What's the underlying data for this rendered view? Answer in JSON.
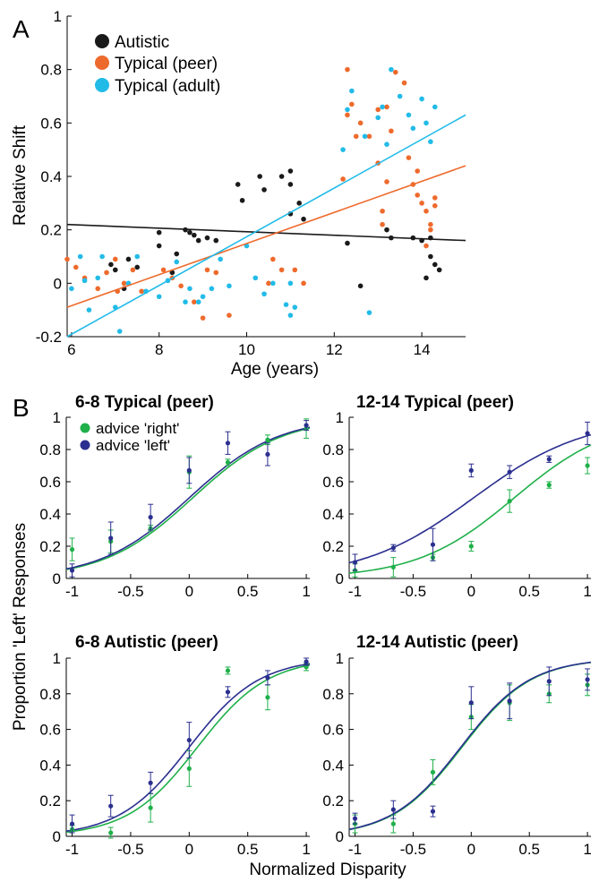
{
  "colors": {
    "autistic": "#1a1a1a",
    "typical_peer": "#ee6a2c",
    "typical_adult": "#22bbe8",
    "advice_right": "#1fb04a",
    "advice_left": "#2b2f8f"
  },
  "panel_a": {
    "letter": "A",
    "xlabel": "Age (years)",
    "ylabel": "Relative Shift",
    "legend": [
      "Autistic",
      "Typical (peer)",
      "Typical (adult)"
    ]
  },
  "panel_b": {
    "letter": "B",
    "xlabel": "Normalized Disparity",
    "ylabel": "Proportion 'Left' Responses",
    "legend": [
      "advice 'right'",
      "advice 'left'"
    ],
    "titles": [
      "6-8 Typical (peer)",
      "12-14 Typical (peer)",
      "6-8 Autistic (peer)",
      "12-14 Autistic (peer)"
    ]
  },
  "chart_data": [
    {
      "type": "scatter",
      "panel": "A",
      "xlabel": "Age (years)",
      "ylabel": "Relative Shift",
      "xlim": [
        5.9,
        15
      ],
      "ylim": [
        -0.2,
        1
      ],
      "xticks": [
        "6",
        "8",
        "10",
        "12",
        "14"
      ],
      "yticks": [
        "-0.2",
        "0",
        "0.2",
        "0.4",
        "0.6",
        "0.8",
        "1"
      ],
      "series": [
        {
          "name": "Autistic",
          "points": [
            [
              6.9,
              0.07
            ],
            [
              7.0,
              0.05
            ],
            [
              7.3,
              0.09
            ],
            [
              7.5,
              0.06
            ],
            [
              7.2,
              -0.02
            ],
            [
              8.0,
              0.19
            ],
            [
              8.0,
              0.14
            ],
            [
              8.3,
              0.04
            ],
            [
              8.4,
              0.11
            ],
            [
              8.6,
              0.2
            ],
            [
              8.7,
              0.19
            ],
            [
              8.8,
              0.18
            ],
            [
              8.9,
              0.16
            ],
            [
              9.1,
              0.17
            ],
            [
              9.3,
              0.16
            ],
            [
              9.8,
              0.37
            ],
            [
              9.9,
              0.31
            ],
            [
              10.3,
              0.4
            ],
            [
              10.4,
              0.35
            ],
            [
              10.8,
              0.4
            ],
            [
              11.0,
              0.42
            ],
            [
              11.0,
              0.37
            ],
            [
              11.2,
              0.3
            ],
            [
              11.0,
              0.26
            ],
            [
              11.3,
              0.24
            ],
            [
              12.3,
              0.15
            ],
            [
              12.6,
              -0.01
            ],
            [
              13.2,
              0.2
            ],
            [
              13.3,
              0.17
            ],
            [
              13.8,
              0.17
            ],
            [
              14.0,
              0.16
            ],
            [
              14.2,
              0.17
            ],
            [
              14.2,
              0.1
            ],
            [
              14.3,
              0.07
            ],
            [
              14.4,
              0.05
            ],
            [
              14.1,
              0.02
            ]
          ]
        },
        {
          "name": "Typical (peer)",
          "points": [
            [
              5.9,
              0.09
            ],
            [
              6.1,
              0.06
            ],
            [
              6.3,
              0.02
            ],
            [
              6.6,
              -0.02
            ],
            [
              6.8,
              0.04
            ],
            [
              7.0,
              0.09
            ],
            [
              7.05,
              -0.03
            ],
            [
              7.2,
              0.0
            ],
            [
              7.4,
              0.05
            ],
            [
              7.6,
              -0.03
            ],
            [
              8.1,
              0.05
            ],
            [
              8.3,
              0.02
            ],
            [
              8.5,
              -0.01
            ],
            [
              8.8,
              -0.07
            ],
            [
              9.0,
              -0.13
            ],
            [
              9.1,
              0.05
            ],
            [
              9.3,
              0.04
            ],
            [
              9.6,
              -0.12
            ],
            [
              10.5,
              0.0
            ],
            [
              10.6,
              0.09
            ],
            [
              10.8,
              0.05
            ],
            [
              11.1,
              0.05
            ],
            [
              11.3,
              0.0
            ],
            [
              12.2,
              0.39
            ],
            [
              12.3,
              0.63
            ],
            [
              12.3,
              0.8
            ],
            [
              12.4,
              0.67
            ],
            [
              12.5,
              0.55
            ],
            [
              12.6,
              0.6
            ],
            [
              12.8,
              0.55
            ],
            [
              13.0,
              0.65
            ],
            [
              13.0,
              0.45
            ],
            [
              13.1,
              0.27
            ],
            [
              13.1,
              0.22
            ],
            [
              13.2,
              0.38
            ],
            [
              13.2,
              0.66
            ],
            [
              13.3,
              0.57
            ],
            [
              13.4,
              0.79
            ],
            [
              13.6,
              0.75
            ],
            [
              13.8,
              0.37
            ],
            [
              13.9,
              0.33
            ],
            [
              14.0,
              0.3
            ],
            [
              14.1,
              0.27
            ],
            [
              14.2,
              0.22
            ],
            [
              14.2,
              0.2
            ],
            [
              14.3,
              0.29
            ],
            [
              14.3,
              0.32
            ],
            [
              14.1,
              0.14
            ],
            [
              13.7,
              0.47
            ],
            [
              13.9,
              0.42
            ]
          ]
        },
        {
          "name": "Typical (adult)",
          "points": [
            [
              6.0,
              -0.02
            ],
            [
              6.2,
              0.1
            ],
            [
              6.3,
              0.01
            ],
            [
              6.4,
              -0.1
            ],
            [
              6.6,
              0.02
            ],
            [
              6.7,
              0.1
            ],
            [
              7.0,
              -0.09
            ],
            [
              7.1,
              -0.18
            ],
            [
              7.3,
              0.0
            ],
            [
              7.5,
              0.1
            ],
            [
              7.7,
              -0.03
            ],
            [
              8.0,
              -0.05
            ],
            [
              8.2,
              0.01
            ],
            [
              8.4,
              0.08
            ],
            [
              8.6,
              -0.07
            ],
            [
              8.7,
              -0.02
            ],
            [
              8.9,
              -0.07
            ],
            [
              9.0,
              -0.05
            ],
            [
              9.2,
              -0.02
            ],
            [
              9.4,
              0.09
            ],
            [
              9.6,
              -0.01
            ],
            [
              10.0,
              0.14
            ],
            [
              10.2,
              0.02
            ],
            [
              10.4,
              -0.04
            ],
            [
              10.6,
              0.0
            ],
            [
              10.9,
              -0.08
            ],
            [
              11.0,
              -0.12
            ],
            [
              11.1,
              -0.09
            ],
            [
              11.0,
              0.0
            ],
            [
              12.2,
              0.5
            ],
            [
              12.3,
              0.65
            ],
            [
              12.4,
              0.72
            ],
            [
              12.7,
              0.55
            ],
            [
              13.0,
              0.62
            ],
            [
              13.1,
              0.66
            ],
            [
              13.2,
              0.52
            ],
            [
              13.3,
              0.8
            ],
            [
              13.5,
              0.7
            ],
            [
              13.7,
              0.63
            ],
            [
              13.8,
              0.58
            ],
            [
              14.0,
              0.69
            ],
            [
              14.1,
              0.6
            ],
            [
              14.3,
              0.66
            ],
            [
              14.2,
              0.53
            ],
            [
              12.8,
              -0.11
            ]
          ]
        }
      ],
      "fits": [
        {
          "name": "Autistic",
          "x": [
            5.9,
            15
          ],
          "y": [
            0.22,
            0.16
          ]
        },
        {
          "name": "Typical (peer)",
          "x": [
            5.9,
            15
          ],
          "y": [
            -0.09,
            0.44
          ]
        },
        {
          "name": "Typical (adult)",
          "x": [
            5.9,
            15
          ],
          "y": [
            -0.2,
            0.63
          ]
        }
      ]
    },
    {
      "type": "scatter",
      "panel": "B",
      "title": "6-8 Typical (peer)",
      "xlim": [
        -1.05,
        1.03
      ],
      "ylim": [
        0,
        1
      ],
      "xticks": [
        "-1",
        "-0.5",
        "0",
        "0.5",
        "1"
      ],
      "yticks": [
        "0",
        "0.2",
        "0.4",
        "0.6",
        "0.8",
        "1"
      ],
      "series": [
        {
          "name": "advice 'right'",
          "x": [
            -1,
            -0.67,
            -0.33,
            0,
            0.33,
            0.67,
            1
          ],
          "y": [
            0.18,
            0.23,
            0.31,
            0.66,
            0.72,
            0.86,
            0.93
          ],
          "err": [
            0.07,
            0.07,
            0.02,
            0.1,
            0.02,
            0.03,
            0.06
          ]
        },
        {
          "name": "advice 'left'",
          "x": [
            -1,
            -0.67,
            -0.33,
            0,
            0.33,
            0.67,
            1
          ],
          "y": [
            0.05,
            0.25,
            0.38,
            0.67,
            0.84,
            0.77,
            0.95
          ],
          "err": [
            0.04,
            0.1,
            0.08,
            0.08,
            0.07,
            0.07,
            0.03
          ]
        }
      ],
      "fits": [
        {
          "name": "advice 'right'",
          "mu": 0.03,
          "s": 0.38
        },
        {
          "name": "advice 'left'",
          "mu": 0.0,
          "s": 0.38
        }
      ]
    },
    {
      "type": "scatter",
      "panel": "B",
      "title": "12-14 Typical (peer)",
      "xlim": [
        -1.05,
        1.03
      ],
      "ylim": [
        0,
        1
      ],
      "xticks": [
        "-1",
        "-0.5",
        "0",
        "0.5",
        "1"
      ],
      "yticks": [
        "0",
        "0.2",
        "0.4",
        "0.6",
        "0.8",
        "1"
      ],
      "series": [
        {
          "name": "advice 'right'",
          "x": [
            -1,
            -0.67,
            -0.33,
            0,
            0.33,
            0.67,
            1
          ],
          "y": [
            0.05,
            0.07,
            0.13,
            0.2,
            0.48,
            0.58,
            0.7
          ],
          "err": [
            0.04,
            0.06,
            0.02,
            0.03,
            0.07,
            0.02,
            0.05
          ]
        },
        {
          "name": "advice 'left'",
          "x": [
            -1,
            -0.67,
            -0.33,
            0,
            0.33,
            0.67,
            1
          ],
          "y": [
            0.1,
            0.19,
            0.21,
            0.67,
            0.66,
            0.74,
            0.9
          ],
          "err": [
            0.05,
            0.02,
            0.1,
            0.04,
            0.04,
            0.02,
            0.07
          ]
        }
      ],
      "fits": [
        {
          "name": "advice 'right'",
          "mu": 0.37,
          "s": 0.42
        },
        {
          "name": "advice 'left'",
          "mu": 0.02,
          "s": 0.48
        }
      ]
    },
    {
      "type": "scatter",
      "panel": "B",
      "title": "6-8 Autistic (peer)",
      "xlim": [
        -1.05,
        1.03
      ],
      "ylim": [
        0,
        1
      ],
      "xticks": [
        "-1",
        "-0.5",
        "0",
        "0.5",
        "1"
      ],
      "yticks": [
        "0",
        "0.2",
        "0.4",
        "0.6",
        "0.8",
        "1"
      ],
      "series": [
        {
          "name": "advice 'right'",
          "x": [
            -1,
            -0.67,
            -0.33,
            0,
            0.33,
            0.67,
            1
          ],
          "y": [
            0.04,
            0.02,
            0.16,
            0.38,
            0.93,
            0.78,
            0.95
          ],
          "err": [
            0.02,
            0.03,
            0.08,
            0.1,
            0.02,
            0.07,
            0.02
          ]
        },
        {
          "name": "advice 'left'",
          "x": [
            -1,
            -0.67,
            -0.33,
            0,
            0.33,
            0.67,
            1
          ],
          "y": [
            0.07,
            0.17,
            0.3,
            0.54,
            0.81,
            0.89,
            0.98
          ],
          "err": [
            0.05,
            0.06,
            0.06,
            0.1,
            0.03,
            0.04,
            0.02
          ]
        }
      ],
      "fits": [
        {
          "name": "advice 'right'",
          "mu": 0.07,
          "s": 0.3
        },
        {
          "name": "advice 'left'",
          "mu": 0.0,
          "s": 0.3
        }
      ]
    },
    {
      "type": "scatter",
      "panel": "B",
      "title": "12-14 Autistic (peer)",
      "xlim": [
        -1.05,
        1.03
      ],
      "ylim": [
        0,
        1
      ],
      "xticks": [
        "-1",
        "-0.5",
        "0",
        "0.5",
        "1"
      ],
      "yticks": [
        "0",
        "0.2",
        "0.4",
        "0.6",
        "0.8",
        "1"
      ],
      "series": [
        {
          "name": "advice 'right'",
          "x": [
            -1,
            -0.67,
            -0.33,
            0,
            0.33,
            0.67,
            1
          ],
          "y": [
            0.07,
            0.07,
            0.36,
            0.67,
            0.75,
            0.8,
            0.85
          ],
          "err": [
            0.05,
            0.05,
            0.07,
            0.07,
            0.1,
            0.05,
            0.06
          ]
        },
        {
          "name": "advice 'left'",
          "x": [
            -1,
            -0.67,
            -0.33,
            0,
            0.33,
            0.67,
            1
          ],
          "y": [
            0.1,
            0.15,
            0.14,
            0.75,
            0.76,
            0.87,
            0.88
          ],
          "err": [
            0.03,
            0.05,
            0.03,
            0.09,
            0.1,
            0.08,
            0.06
          ]
        }
      ],
      "fits": [
        {
          "name": "advice 'right'",
          "mu": -0.08,
          "s": 0.3
        },
        {
          "name": "advice 'left'",
          "mu": -0.09,
          "s": 0.3
        }
      ]
    }
  ]
}
